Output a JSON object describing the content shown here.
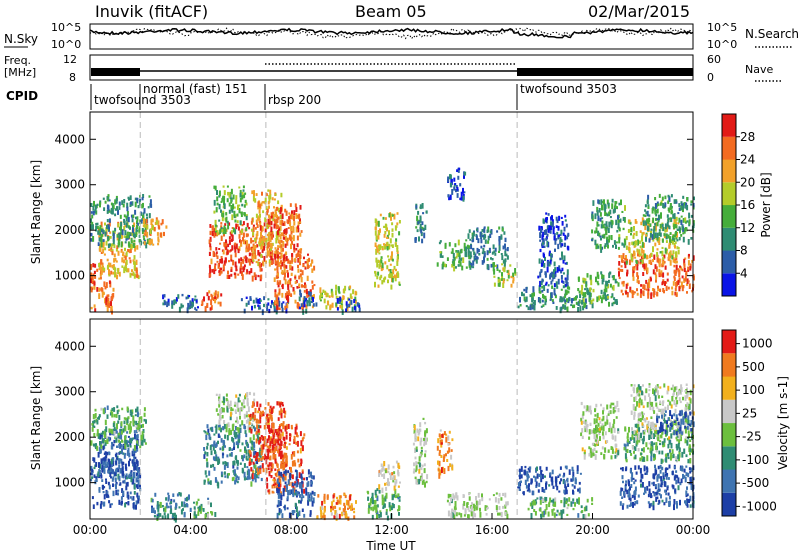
{
  "header": {
    "station": "Inuvik (fitACF)",
    "beam": "Beam 05",
    "date": "02/Mar/2015"
  },
  "top_panel": {
    "left_label": "N.Sky",
    "left_ticks": [
      "10^5",
      "10^0"
    ],
    "right_ticks": [
      "10^5",
      "10^0"
    ],
    "right_label": "N.Search"
  },
  "freq_panel": {
    "left_label_1": "Freq.",
    "left_label_2": "[MHz]",
    "left_ticks": [
      "12",
      "8"
    ],
    "right_ticks": [
      "60",
      "0"
    ],
    "right_label": "Nave"
  },
  "cpid": {
    "label": "CPID",
    "segments": [
      {
        "name": "twofsound 3503",
        "start_hour": 0.0
      },
      {
        "name": "normal (fast) 151",
        "start_hour": 2.0
      },
      {
        "name": "rbsp 200",
        "start_hour": 7.0
      },
      {
        "name": "twofsound 3503",
        "start_hour": 17.0
      }
    ]
  },
  "chart_data": [
    {
      "type": "heatmap",
      "ylabel": "Slant Range [km]",
      "y_ticks": [
        "1000",
        "2000",
        "3000",
        "4000"
      ],
      "ylim": [
        200,
        4600
      ],
      "xlim": [
        0,
        24
      ],
      "colorbar": {
        "label": "Power [dB]",
        "ticks": [
          "4",
          "8",
          "12",
          "16",
          "20",
          "24",
          "28"
        ],
        "colors": [
          "#0a14e6",
          "#2c5da8",
          "#2f8c73",
          "#45ad3a",
          "#b4cc2a",
          "#f2a12a",
          "#f36b21",
          "#e21b17"
        ],
        "range": [
          0,
          30
        ]
      },
      "regions": [
        {
          "t0": 0.0,
          "t1": 0.9,
          "r0": 250,
          "r1": 1300,
          "v": 24
        },
        {
          "t0": 0.3,
          "t1": 1.9,
          "r0": 1000,
          "r1": 2200,
          "v": 20
        },
        {
          "t0": 0.0,
          "t1": 2.4,
          "r0": 1700,
          "r1": 2800,
          "v": 10
        },
        {
          "t0": 2.1,
          "t1": 3.0,
          "r0": 1700,
          "r1": 2300,
          "v": 22
        },
        {
          "t0": 2.8,
          "t1": 4.3,
          "r0": 250,
          "r1": 600,
          "v": 6
        },
        {
          "t0": 4.4,
          "t1": 5.2,
          "r0": 300,
          "r1": 700,
          "v": 25
        },
        {
          "t0": 4.7,
          "t1": 7.0,
          "r0": 1000,
          "r1": 2200,
          "v": 26
        },
        {
          "t0": 4.9,
          "t1": 6.2,
          "r0": 2000,
          "r1": 3000,
          "v": 14
        },
        {
          "t0": 6.4,
          "t1": 7.6,
          "r0": 1300,
          "r1": 2900,
          "v": 20
        },
        {
          "t0": 7.0,
          "t1": 8.4,
          "r0": 1300,
          "r1": 2600,
          "v": 24
        },
        {
          "t0": 6.0,
          "t1": 8.0,
          "r0": 250,
          "r1": 550,
          "v": 5
        },
        {
          "t0": 7.3,
          "t1": 8.9,
          "r0": 300,
          "r1": 1500,
          "v": 24
        },
        {
          "t0": 8.3,
          "t1": 9.0,
          "r0": 250,
          "r1": 700,
          "v": 6
        },
        {
          "t0": 9.1,
          "t1": 10.6,
          "r0": 300,
          "r1": 800,
          "v": 18
        },
        {
          "t0": 9.8,
          "t1": 10.7,
          "r0": 250,
          "r1": 550,
          "v": 5
        },
        {
          "t0": 11.3,
          "t1": 12.3,
          "r0": 800,
          "r1": 2400,
          "v": 18
        },
        {
          "t0": 12.9,
          "t1": 13.4,
          "r0": 1800,
          "r1": 2600,
          "v": 8
        },
        {
          "t0": 13.8,
          "t1": 15.1,
          "r0": 1200,
          "r1": 1800,
          "v": 12
        },
        {
          "t0": 14.2,
          "t1": 14.9,
          "r0": 2700,
          "r1": 3400,
          "v": 5
        },
        {
          "t0": 15.0,
          "t1": 16.6,
          "r0": 1200,
          "r1": 2100,
          "v": 8
        },
        {
          "t0": 16.0,
          "t1": 16.9,
          "r0": 800,
          "r1": 1300,
          "v": 16
        },
        {
          "t0": 17.0,
          "t1": 19.8,
          "r0": 300,
          "r1": 800,
          "v": 10
        },
        {
          "t0": 17.8,
          "t1": 19.0,
          "r0": 800,
          "r1": 2400,
          "v": 5
        },
        {
          "t0": 19.4,
          "t1": 21.0,
          "r0": 400,
          "r1": 1100,
          "v": 12
        },
        {
          "t0": 19.9,
          "t1": 21.3,
          "r0": 1600,
          "r1": 2700,
          "v": 11
        },
        {
          "t0": 21.0,
          "t1": 24.0,
          "r0": 600,
          "r1": 1500,
          "v": 25
        },
        {
          "t0": 21.3,
          "t1": 23.4,
          "r0": 1300,
          "r1": 2300,
          "v": 18
        },
        {
          "t0": 22.0,
          "t1": 24.0,
          "r0": 1800,
          "r1": 2800,
          "v": 11
        }
      ]
    },
    {
      "type": "heatmap",
      "ylabel": "Slant Range [km]",
      "y_ticks": [
        "1000",
        "2000",
        "3000",
        "4000"
      ],
      "ylim": [
        200,
        4600
      ],
      "xlim": [
        0,
        24
      ],
      "xlabel": "Time UT",
      "x_ticks": [
        "00:00",
        "04:00",
        "08:00",
        "12:00",
        "16:00",
        "20:00",
        "00:00"
      ],
      "colorbar": {
        "label": "Velocity [m s-1]",
        "ticks": [
          "1000",
          "500",
          "100",
          "25",
          "-25",
          "-100",
          "-500",
          "-1000"
        ],
        "colors": [
          "#1d3fa6",
          "#3f74b1",
          "#2f8c73",
          "#6cbf3e",
          "#c8c8c8",
          "#f2b01d",
          "#f07a1f",
          "#e31b17"
        ],
        "range": [
          0,
          8
        ]
      },
      "regions": [
        {
          "t0": 0.0,
          "t1": 2.0,
          "r0": 500,
          "r1": 1600,
          "v": 1
        },
        {
          "t0": 0.3,
          "t1": 1.9,
          "r0": 1200,
          "r1": 2200,
          "v": 1
        },
        {
          "t0": 0.0,
          "t1": 2.2,
          "r0": 1800,
          "r1": 2700,
          "v": 3
        },
        {
          "t0": 2.4,
          "t1": 4.0,
          "r0": 250,
          "r1": 800,
          "v": 2
        },
        {
          "t0": 4.1,
          "t1": 5.0,
          "r0": 300,
          "r1": 700,
          "v": 3
        },
        {
          "t0": 4.5,
          "t1": 6.8,
          "r0": 1000,
          "r1": 2300,
          "v": 2
        },
        {
          "t0": 5.0,
          "t1": 6.5,
          "r0": 2200,
          "r1": 3000,
          "v": 4
        },
        {
          "t0": 6.3,
          "t1": 7.8,
          "r0": 1200,
          "r1": 2800,
          "v": 7
        },
        {
          "t0": 7.0,
          "t1": 8.5,
          "r0": 800,
          "r1": 2300,
          "v": 7
        },
        {
          "t0": 7.4,
          "t1": 8.9,
          "r0": 300,
          "r1": 1300,
          "v": 1
        },
        {
          "t0": 9.0,
          "t1": 10.6,
          "r0": 250,
          "r1": 800,
          "v": 6
        },
        {
          "t0": 11.0,
          "t1": 12.3,
          "r0": 250,
          "r1": 900,
          "v": 3
        },
        {
          "t0": 11.4,
          "t1": 12.3,
          "r0": 900,
          "r1": 1500,
          "v": 5
        },
        {
          "t0": 12.8,
          "t1": 13.4,
          "r0": 1000,
          "r1": 2500,
          "v": 4
        },
        {
          "t0": 13.8,
          "t1": 14.4,
          "r0": 1200,
          "r1": 2200,
          "v": 6
        },
        {
          "t0": 14.2,
          "t1": 16.6,
          "r0": 300,
          "r1": 800,
          "v": 4
        },
        {
          "t0": 17.0,
          "t1": 19.5,
          "r0": 800,
          "r1": 1400,
          "v": 1
        },
        {
          "t0": 17.4,
          "t1": 20.0,
          "r0": 300,
          "r1": 700,
          "v": 3
        },
        {
          "t0": 19.5,
          "t1": 21.0,
          "r0": 1600,
          "r1": 2800,
          "v": 4
        },
        {
          "t0": 21.0,
          "t1": 24.0,
          "r0": 500,
          "r1": 1400,
          "v": 1
        },
        {
          "t0": 21.2,
          "t1": 24.0,
          "r0": 1500,
          "r1": 2300,
          "v": 3
        },
        {
          "t0": 21.5,
          "t1": 24.0,
          "r0": 2000,
          "r1": 3200,
          "v": 4
        },
        {
          "t0": 22.5,
          "t1": 24.0,
          "r0": 2100,
          "r1": 2600,
          "v": 1
        }
      ]
    }
  ]
}
